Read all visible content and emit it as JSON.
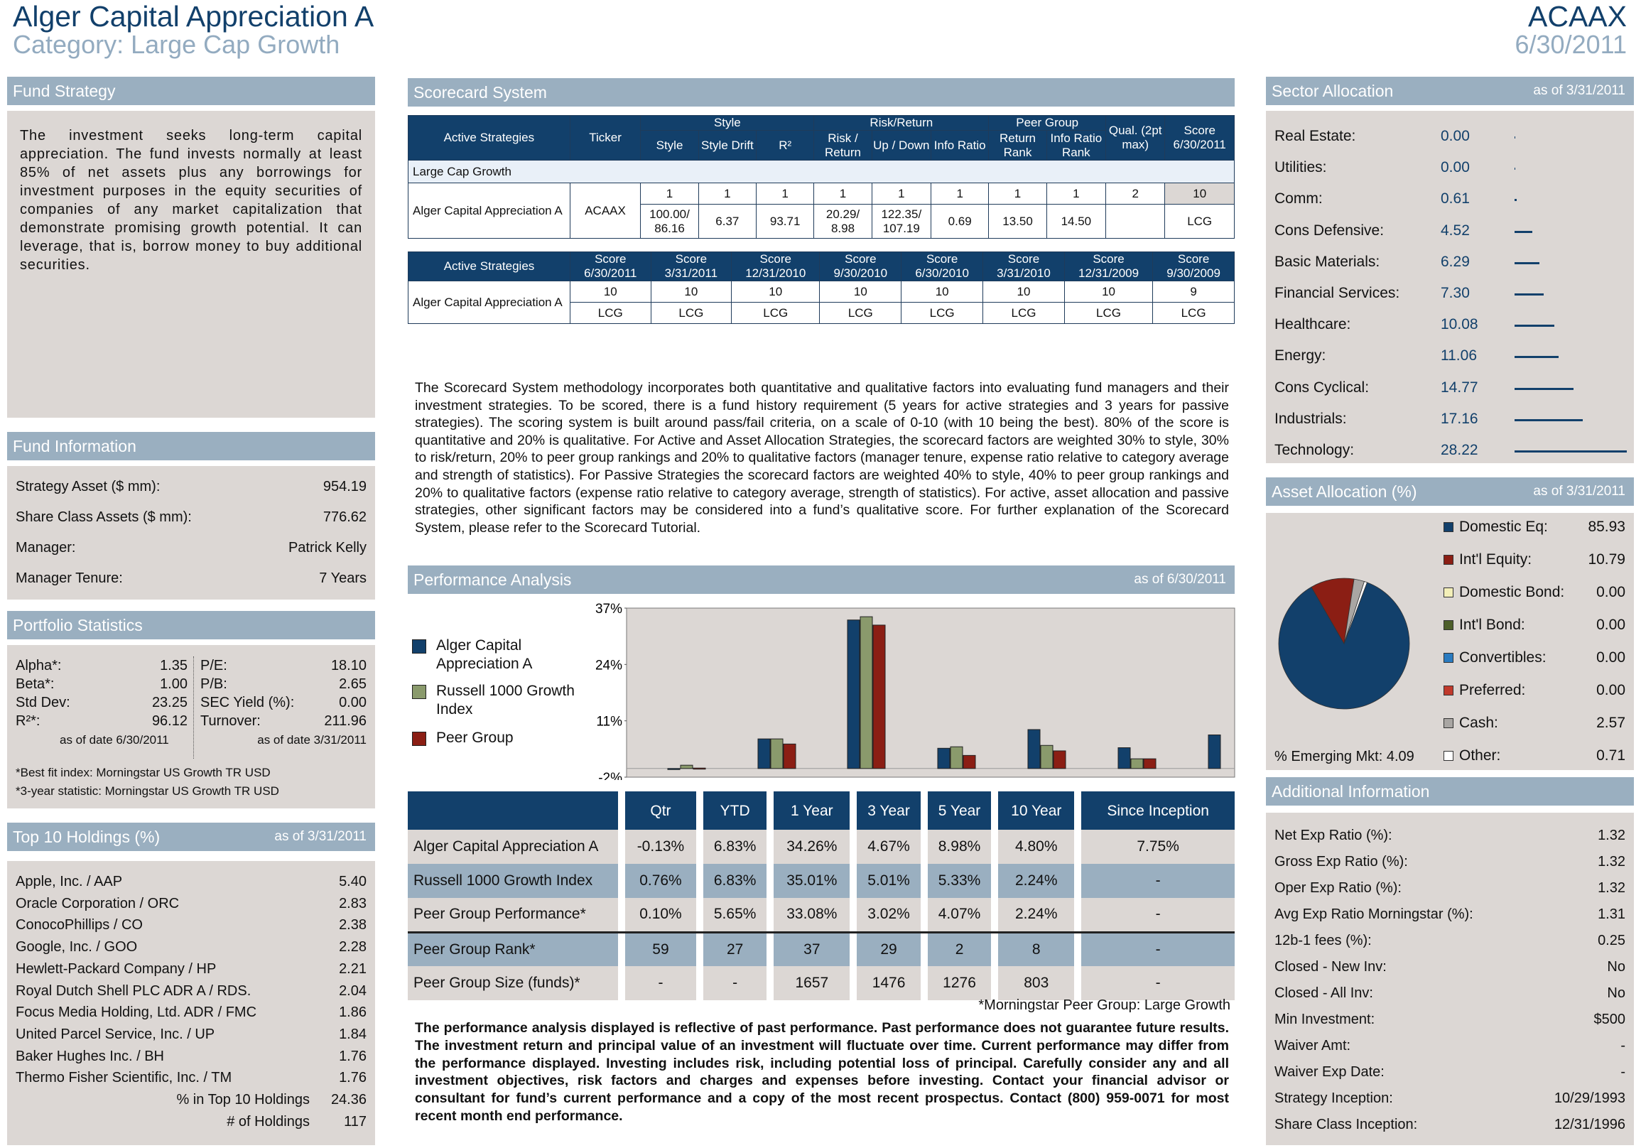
{
  "header": {
    "title": "Alger Capital Appreciation A",
    "category": "Category: Large Cap Growth",
    "ticker": "ACAAX",
    "date": "6/30/2011"
  },
  "fund_strategy": {
    "heading": "Fund Strategy",
    "text": "The investment seeks long-term capital appreciation. The fund invests normally at least 85% of net assets plus any borrowings for investment purposes in the equity securities of companies of any market capitalization that demonstrate promising growth potential. It can leverage, that is, borrow money to buy additional securities."
  },
  "fund_information": {
    "heading": "Fund Information",
    "rows": [
      {
        "label": "Strategy Asset ($ mm):",
        "value": "954.19"
      },
      {
        "label": "Share Class Assets ($ mm):",
        "value": "776.62"
      },
      {
        "label": "Manager:",
        "value": "Patrick  Kelly"
      },
      {
        "label": "Manager Tenure:",
        "value": "7 Years"
      }
    ]
  },
  "portfolio_statistics": {
    "heading": "Portfolio Statistics",
    "left": [
      {
        "label": "Alpha*:",
        "value": "1.35"
      },
      {
        "label": "Beta*:",
        "value": "1.00"
      },
      {
        "label": "Std Dev:",
        "value": "23.25"
      },
      {
        "label": "R²*:",
        "value": "96.12"
      }
    ],
    "right": [
      {
        "label": "P/E:",
        "value": "18.10"
      },
      {
        "label": "P/B:",
        "value": "2.65"
      },
      {
        "label": "SEC Yield (%):",
        "value": "0.00"
      },
      {
        "label": "Turnover:",
        "value": "211.96"
      }
    ],
    "left_asof": "as of date 6/30/2011",
    "right_asof": "as of date 3/31/2011",
    "note1": "*Best fit index: Morningstar US Growth TR USD",
    "note2": "*3-year statistic: Morningstar US Growth TR USD"
  },
  "top10": {
    "heading": "Top 10 Holdings (%)",
    "asof": "as of 3/31/2011",
    "rows": [
      {
        "label": "Apple, Inc. / AAP",
        "value": "5.40"
      },
      {
        "label": "Oracle Corporation / ORC",
        "value": "2.83"
      },
      {
        "label": "ConocoPhillips / CO",
        "value": "2.38"
      },
      {
        "label": "Google, Inc. / GOO",
        "value": "2.28"
      },
      {
        "label": "Hewlett-Packard Company / HP",
        "value": "2.21"
      },
      {
        "label": "Royal Dutch Shell PLC ADR A / RDS.",
        "value": "2.04"
      },
      {
        "label": "Focus Media Holding, Ltd. ADR / FMC",
        "value": "1.86"
      },
      {
        "label": "United Parcel Service, Inc. / UP",
        "value": "1.84"
      },
      {
        "label": "Baker Hughes Inc. / BH",
        "value": "1.76"
      },
      {
        "label": "Thermo Fisher Scientific, Inc. / TM",
        "value": "1.76"
      }
    ],
    "pct_label": "% in Top 10 Holdings",
    "pct_value": "24.36",
    "num_label": "# of Holdings",
    "num_value": "117"
  },
  "scorecard": {
    "heading": "Scorecard System",
    "table1": {
      "h_active": "Active Strategies",
      "h_ticker": "Ticker",
      "g_style": "Style",
      "g_risk": "Risk/Return",
      "g_peer": "Peer Group",
      "h_qual": "Qual. (2pt max)",
      "h_score": "Score 6/30/2011",
      "sub": [
        "Style",
        "Style Drift",
        "R²",
        "Risk / Return",
        "Up / Down",
        "Info Ratio",
        "Return Rank",
        "Info Ratio Rank"
      ],
      "group_label": "Large Cap Growth",
      "fund_name": "Alger Capital Appreciation A",
      "ticker": "ACAAX",
      "points": [
        "1",
        "1",
        "1",
        "1",
        "1",
        "1",
        "1",
        "1",
        "2",
        "10"
      ],
      "values": [
        "100.00/ 86.16",
        "6.37",
        "93.71",
        "20.29/ 8.98",
        "122.35/ 107.19",
        "0.69",
        "13.50",
        "14.50",
        "",
        "LCG"
      ]
    },
    "table2": {
      "h_active": "Active Strategies",
      "headers": [
        "Score 6/30/2011",
        "Score 3/31/2011",
        "Score 12/31/2010",
        "Score 9/30/2010",
        "Score 6/30/2010",
        "Score 3/31/2010",
        "Score 12/31/2009",
        "Score 9/30/2009"
      ],
      "fund_name": "Alger Capital Appreciation A",
      "scores": [
        "10",
        "10",
        "10",
        "10",
        "10",
        "10",
        "10",
        "9"
      ],
      "styles": [
        "LCG",
        "LCG",
        "LCG",
        "LCG",
        "LCG",
        "LCG",
        "LCG",
        "LCG"
      ]
    },
    "methodology": "The Scorecard System methodology incorporates both quantitative and qualitative factors into evaluating fund managers and their investment strategies. To be scored, there is a fund history requirement (5 years for active strategies and 3 years for passive strategies). The scoring system is built around pass/fail criteria, on a scale of 0-10 (with 10 being the best). 80% of the score is quantitative and 20% is qualitative. For Active and Asset Allocation Strategies, the scorecard factors are weighted 30% to style, 30% to risk/return, 20% to peer group rankings and 20% to qualitative factors (manager tenure, expense ratio relative to category average and strength of statistics). For Passive Strategies the scorecard factors are weighted 40% to style, 40% to peer group rankings and 20% to qualitative factors (expense ratio relative to category average, strength of statistics). For active, asset allocation and passive strategies, other significant factors may be considered into a fund’s qualitative score. For further explanation of the Scorecard System, please refer to the Scorecard Tutorial."
  },
  "performance": {
    "heading": "Performance Analysis",
    "asof": "as of 6/30/2011",
    "columns": [
      "Qtr",
      "YTD",
      "1 Year",
      "3 Year",
      "5 Year",
      "10 Year",
      "Since Inception"
    ],
    "rows": [
      {
        "label": "Alger Capital Appreciation A",
        "values": [
          "-0.13%",
          "6.83%",
          "34.26%",
          "4.67%",
          "8.98%",
          "4.80%",
          "7.75%"
        ]
      },
      {
        "label": "Russell 1000 Growth Index",
        "values": [
          "0.76%",
          "6.83%",
          "35.01%",
          "5.01%",
          "5.33%",
          "2.24%",
          "-"
        ]
      },
      {
        "label": "Peer Group Performance*",
        "values": [
          "0.10%",
          "5.65%",
          "33.08%",
          "3.02%",
          "4.07%",
          "2.24%",
          "-"
        ]
      },
      {
        "label": "Peer Group Rank*",
        "values": [
          "59",
          "27",
          "37",
          "29",
          "2",
          "8",
          "-"
        ]
      },
      {
        "label": "Peer Group Size (funds)*",
        "values": [
          "-",
          "-",
          "1657",
          "1476",
          "1276",
          "803",
          "-"
        ]
      }
    ],
    "footnote": "*Morningstar Peer Group: Large Growth",
    "disclaimer": "The performance analysis displayed is reflective of past performance. Past performance does not guarantee future results. The investment return and principal value of an investment will fluctuate over time. Current performance may differ from the performance displayed. Investing includes risk, including potential loss of principal. Carefully consider any and all investment objectives, risk factors and charges and expenses before investing. Contact your financial advisor or consultant for fund’s current performance and a copy of the most recent prospectus. Contact (800) 959-0071 for most recent month end performance."
  },
  "chart_data": {
    "type": "bar",
    "categories": [
      "Qtr",
      "YTD",
      "1 Year",
      "3 Year",
      "5 Year",
      "10 Year",
      "Since Inception"
    ],
    "series": [
      {
        "name": "Alger Capital Appreciation A",
        "color": "#12406b",
        "values": [
          -0.13,
          6.83,
          34.26,
          4.67,
          8.98,
          4.8,
          7.75
        ]
      },
      {
        "name": "Russell 1000 Growth Index",
        "color": "#8a9a6c",
        "values": [
          0.76,
          6.83,
          35.01,
          5.01,
          5.33,
          2.24,
          null
        ]
      },
      {
        "name": "Peer Group",
        "color": "#8b1e14",
        "values": [
          0.1,
          5.65,
          33.08,
          3.02,
          4.07,
          2.24,
          null
        ]
      }
    ],
    "yticks": [
      "37%",
      "24%",
      "11%",
      "-2%"
    ],
    "ylim": [
      -2,
      37
    ],
    "legend": "left"
  },
  "sector": {
    "heading": "Sector Allocation",
    "asof": "as of 3/31/2011",
    "rows": [
      {
        "label": "Real Estate:",
        "value": "0.00",
        "n": 0.0
      },
      {
        "label": "Utilities:",
        "value": "0.00",
        "n": 0.0
      },
      {
        "label": "Comm:",
        "value": "0.61",
        "n": 0.61
      },
      {
        "label": "Cons Defensive:",
        "value": "4.52",
        "n": 4.52
      },
      {
        "label": "Basic Materials:",
        "value": "6.29",
        "n": 6.29
      },
      {
        "label": "Financial Services:",
        "value": "7.30",
        "n": 7.3
      },
      {
        "label": "Healthcare:",
        "value": "10.08",
        "n": 10.08
      },
      {
        "label": "Energy:",
        "value": "11.06",
        "n": 11.06
      },
      {
        "label": "Cons Cyclical:",
        "value": "14.77",
        "n": 14.77
      },
      {
        "label": "Industrials:",
        "value": "17.16",
        "n": 17.16
      },
      {
        "label": "Technology:",
        "value": "28.22",
        "n": 28.22
      }
    ]
  },
  "asset_allocation": {
    "heading": "Asset Allocation (%)",
    "asof": "as of 3/31/2011",
    "rows": [
      {
        "label": "Domestic Eq:",
        "value": "85.93",
        "n": 85.93,
        "color": "#12406b"
      },
      {
        "label": "Int'l Equity:",
        "value": "10.79",
        "n": 10.79,
        "color": "#8b1e14"
      },
      {
        "label": "Domestic Bond:",
        "value": "0.00",
        "n": 0,
        "color": "#f3efb8"
      },
      {
        "label": "Int'l Bond:",
        "value": "0.00",
        "n": 0,
        "color": "#4d5f2a"
      },
      {
        "label": "Convertibles:",
        "value": "0.00",
        "n": 0,
        "color": "#2a7bc0"
      },
      {
        "label": "Preferred:",
        "value": "0.00",
        "n": 0,
        "color": "#c0392b"
      },
      {
        "label": "Cash:",
        "value": "2.57",
        "n": 2.57,
        "color": "#a9a6a3"
      },
      {
        "label": "Other:",
        "value": "0.71",
        "n": 0.71,
        "color": "#ffffff"
      }
    ],
    "emerging": "% Emerging Mkt: 4.09"
  },
  "additional": {
    "heading": "Additional Information",
    "rows": [
      {
        "label": "Net Exp Ratio (%):",
        "value": "1.32"
      },
      {
        "label": "Gross Exp Ratio (%):",
        "value": "1.32"
      },
      {
        "label": "Oper Exp Ratio (%):",
        "value": "1.32"
      },
      {
        "label": "Avg Exp Ratio Morningstar (%):",
        "value": "1.31"
      },
      {
        "label": "12b-1 fees (%):",
        "value": "0.25"
      },
      {
        "label": "Closed - New Inv:",
        "value": "No"
      },
      {
        "label": "Closed - All Inv:",
        "value": "No"
      },
      {
        "label": "Min Investment:",
        "value": "$500"
      },
      {
        "label": "Waiver Amt:",
        "value": "-"
      },
      {
        "label": "Waiver Exp Date:",
        "value": "-"
      },
      {
        "label": "Strategy Inception:",
        "value": "10/29/1993"
      },
      {
        "label": "Share Class Inception:",
        "value": "12/31/1996"
      }
    ]
  }
}
